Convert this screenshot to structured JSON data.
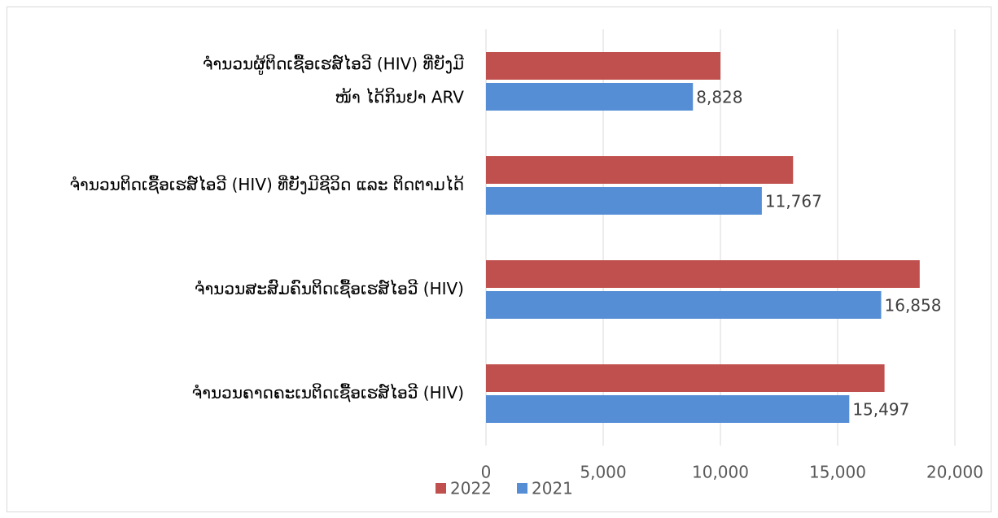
{
  "chart_data": {
    "type": "hbar",
    "categories": [
      "ຈຳນວນຜູ້ຕິດເຊື້ອເຮສ໌ໄອວີ (HIV) ທີ່ຍັງມີ\nໜ້າ ໄດ້ກິນຢາ ARV",
      "ຈຳນວນຕິດເຊື້ອເຮສ໌ໄອວີ (HIV) ທີ່ຍັງມີຊີວິດ ແລະ ຕິດຕາມໄດ້",
      "ຈຳນວນສະສົມຄົນຕິດເຊື້ອເຮສ໌ໄອວີ (HIV)",
      "ຈຳນວນຄາດຄະເນຕິດເຊື້ອເຮສ໌ໄອວີ (HIV)"
    ],
    "series": [
      {
        "name": "2022",
        "color": "#c0504d",
        "values": [
          10000,
          13100,
          18500,
          17000
        ]
      },
      {
        "name": "2021",
        "color": "#558ed5",
        "values": [
          8828,
          11767,
          16858,
          15497
        ],
        "value_labels": [
          "8,828",
          "11,767",
          "16,858",
          "15,497"
        ]
      }
    ],
    "xlim": [
      0,
      20000
    ],
    "xticks": [
      0,
      {
        "value": 5000,
        "label": "5,000"
      },
      {
        "value": 10000,
        "label": "10,000"
      },
      {
        "value": 15000,
        "label": "15,000"
      },
      {
        "value": 20000,
        "label": "20,000"
      }
    ],
    "grid": true,
    "legend": "bottom"
  }
}
